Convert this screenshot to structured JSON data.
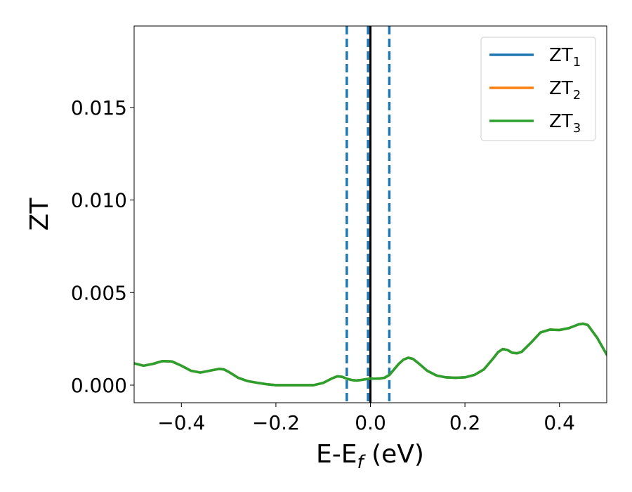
{
  "chart_data": {
    "type": "line",
    "xlabel_main": "E-E",
    "xlabel_sub": "f",
    "xlabel_tail": " (eV)",
    "ylabel": "ZT",
    "xlim": [
      -0.5,
      0.5
    ],
    "ylim": [
      -0.00095,
      0.0194
    ],
    "x_ticks": [
      -0.4,
      -0.2,
      0.0,
      0.2,
      0.4
    ],
    "x_tick_labels": [
      "−0.4",
      "−0.2",
      "0.0",
      "0.2",
      "0.4"
    ],
    "y_ticks": [
      0.0,
      0.005,
      0.01,
      0.015
    ],
    "y_tick_labels": [
      "0.000",
      "0.005",
      "0.010",
      "0.015"
    ],
    "grid": false,
    "legend_position": "top-right",
    "x": [
      -0.5,
      -0.48,
      -0.46,
      -0.44,
      -0.42,
      -0.4,
      -0.38,
      -0.36,
      -0.34,
      -0.32,
      -0.31,
      -0.3,
      -0.28,
      -0.26,
      -0.24,
      -0.22,
      -0.2,
      -0.18,
      -0.16,
      -0.14,
      -0.12,
      -0.1,
      -0.08,
      -0.07,
      -0.06,
      -0.05,
      -0.04,
      -0.03,
      -0.02,
      -0.01,
      0.0,
      0.01,
      0.02,
      0.03,
      0.04,
      0.05,
      0.06,
      0.07,
      0.08,
      0.09,
      0.1,
      0.12,
      0.14,
      0.16,
      0.18,
      0.2,
      0.22,
      0.24,
      0.26,
      0.27,
      0.28,
      0.29,
      0.3,
      0.31,
      0.32,
      0.34,
      0.36,
      0.38,
      0.4,
      0.42,
      0.44,
      0.45,
      0.46,
      0.48,
      0.5
    ],
    "series": [
      {
        "name_main": "ZT",
        "name_sub": "1",
        "color": "#1f77b4",
        "values": [
          0.00118,
          0.00105,
          0.00115,
          0.0013,
          0.00128,
          0.00105,
          0.00078,
          0.00068,
          0.00078,
          0.00088,
          0.00085,
          0.00072,
          0.0004,
          0.00022,
          0.00013,
          5e-05,
          0.0,
          0.0,
          0.0,
          0.0,
          0.0,
          0.00012,
          0.00038,
          0.00048,
          0.00045,
          0.00035,
          0.00028,
          0.00025,
          0.00028,
          0.00032,
          0.00035,
          0.00035,
          0.00036,
          0.0004,
          0.00055,
          0.00085,
          0.00115,
          0.00138,
          0.00148,
          0.00142,
          0.00122,
          0.00078,
          0.00052,
          0.00042,
          0.0004,
          0.00042,
          0.00055,
          0.00085,
          0.00145,
          0.00178,
          0.00195,
          0.0019,
          0.00175,
          0.00172,
          0.0018,
          0.0023,
          0.00285,
          0.003,
          0.00298,
          0.00308,
          0.00328,
          0.00332,
          0.00325,
          0.00255,
          0.00165
        ]
      },
      {
        "name_main": "ZT",
        "name_sub": "2",
        "color": "#ff7f0e",
        "values": [
          0.00118,
          0.00105,
          0.00115,
          0.0013,
          0.00128,
          0.00105,
          0.00078,
          0.00068,
          0.00078,
          0.00088,
          0.00085,
          0.00072,
          0.0004,
          0.00022,
          0.00013,
          5e-05,
          0.0,
          0.0,
          0.0,
          0.0,
          0.0,
          0.00012,
          0.00038,
          0.00048,
          0.00045,
          0.00035,
          0.00028,
          0.00025,
          0.00028,
          0.00032,
          0.00035,
          0.00035,
          0.00036,
          0.0004,
          0.00055,
          0.00085,
          0.00115,
          0.00138,
          0.00148,
          0.00142,
          0.00122,
          0.00078,
          0.00052,
          0.00042,
          0.0004,
          0.00042,
          0.00055,
          0.00085,
          0.00145,
          0.00178,
          0.00195,
          0.0019,
          0.00175,
          0.00172,
          0.0018,
          0.0023,
          0.00285,
          0.003,
          0.00298,
          0.00308,
          0.00328,
          0.00332,
          0.00325,
          0.00255,
          0.00165
        ]
      },
      {
        "name_main": "ZT",
        "name_sub": "3",
        "color": "#2ca02c",
        "values": [
          0.00118,
          0.00105,
          0.00115,
          0.0013,
          0.00128,
          0.00105,
          0.00078,
          0.00068,
          0.00078,
          0.00088,
          0.00085,
          0.00072,
          0.0004,
          0.00022,
          0.00013,
          5e-05,
          0.0,
          0.0,
          0.0,
          0.0,
          0.0,
          0.00012,
          0.00038,
          0.00048,
          0.00045,
          0.00035,
          0.00028,
          0.00025,
          0.00028,
          0.00032,
          0.00035,
          0.00035,
          0.00036,
          0.0004,
          0.00055,
          0.00085,
          0.00115,
          0.00138,
          0.00148,
          0.00142,
          0.00122,
          0.00078,
          0.00052,
          0.00042,
          0.0004,
          0.00042,
          0.00055,
          0.00085,
          0.00145,
          0.00178,
          0.00195,
          0.0019,
          0.00175,
          0.00172,
          0.0018,
          0.0023,
          0.00285,
          0.003,
          0.00298,
          0.00308,
          0.00328,
          0.00332,
          0.00325,
          0.00255,
          0.00165
        ]
      }
    ],
    "vertical_lines": [
      {
        "x": -0.05,
        "style": "dashed",
        "color": "#1f77b4"
      },
      {
        "x": -0.005,
        "style": "dashed",
        "color": "#1f77b4"
      },
      {
        "x": 0.0,
        "style": "solid",
        "color": "#000000"
      },
      {
        "x": 0.04,
        "style": "dashed",
        "color": "#1f77b4"
      }
    ]
  }
}
